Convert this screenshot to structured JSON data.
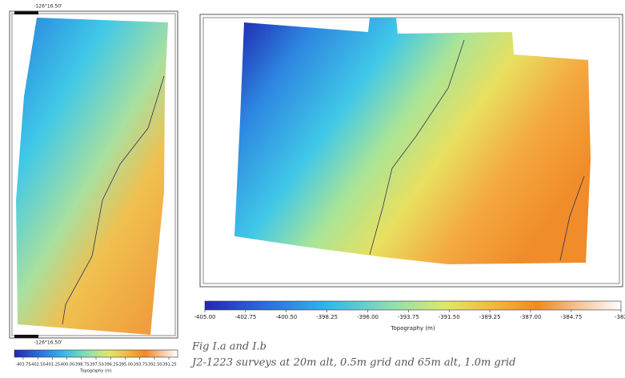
{
  "maps": [
    {
      "lon_top": "-126°16.50'",
      "lon_bottom": "-126°16.50'",
      "colorbar": {
        "label": "Topography (m)",
        "lim": [
          -404.5,
          -390.5
        ],
        "ticks": [
          -403.75,
          {
            "value": -402.5,
            "label": "-402.50"
          },
          -401.25,
          {
            "value": -400,
            "label": "-400.00"
          },
          -398.75,
          {
            "value": -397.5,
            "label": "-397.50"
          },
          -396.25,
          {
            "value": -395,
            "label": "-395.00"
          },
          -393.75,
          {
            "value": -392.5,
            "label": "-392.50"
          },
          -391.25
        ]
      }
    },
    {
      "colorbar": {
        "label": "Topography (m)",
        "lim": [
          -405,
          -382
        ],
        "ticks": [
          {
            "value": -405,
            "label": "-405.00"
          },
          -402.75,
          {
            "value": -400.5,
            "label": "-400.50"
          },
          -398.25,
          {
            "value": -396,
            "label": "-396.00"
          },
          -393.75,
          {
            "value": -391.5,
            "label": "-391.50"
          },
          -389.25,
          {
            "value": -387,
            "label": "-387.00"
          },
          -384.75,
          -382
        ]
      }
    }
  ],
  "caption": {
    "title": "Fig I.a and I.b",
    "text": "J2-1223 surveys at 20m alt, 0.5m grid and 65m alt, 1.0m grid"
  }
}
